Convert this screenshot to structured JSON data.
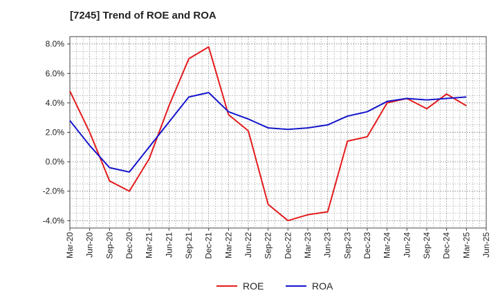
{
  "title": "[7245]  Trend of ROE and ROA",
  "chart_data": {
    "type": "line",
    "title": "[7245]  Trend of ROE and ROA",
    "xlabel": "",
    "ylabel": "",
    "categories": [
      "Mar-20",
      "Jun-20",
      "Sep-20",
      "Dec-20",
      "Mar-21",
      "Jun-21",
      "Sep-21",
      "Dec-21",
      "Mar-22",
      "Jun-22",
      "Sep-22",
      "Dec-22",
      "Mar-23",
      "Jun-23",
      "Sep-23",
      "Dec-23",
      "Mar-24",
      "Jun-24",
      "Sep-24",
      "Dec-24",
      "Mar-25",
      "Jun-25"
    ],
    "ylim": [
      -4.5,
      8.5
    ],
    "yticks": [
      8.0,
      6.0,
      4.0,
      2.0,
      0.0,
      -2.0,
      -4.0
    ],
    "ytick_labels": [
      "8.0%",
      "6.0%",
      "4.0%",
      "2.0%",
      "0.0%",
      "-2.0%",
      "-4.0%"
    ],
    "grid": true,
    "legend": "bottom-center",
    "series": [
      {
        "name": "ROE",
        "color": "#e41a1c",
        "values": [
          4.8,
          2.0,
          -1.3,
          -2.0,
          0.2,
          3.8,
          7.0,
          7.8,
          3.2,
          2.1,
          -2.9,
          -4.0,
          -3.6,
          -3.4,
          1.4,
          1.7,
          4.0,
          4.3,
          3.6,
          4.6,
          3.8,
          null
        ]
      },
      {
        "name": "ROA",
        "color": "#1515cc",
        "values": [
          2.8,
          1.1,
          -0.4,
          -0.7,
          1.0,
          2.7,
          4.4,
          4.7,
          3.4,
          2.9,
          2.3,
          2.2,
          2.3,
          2.5,
          3.1,
          3.4,
          4.1,
          4.3,
          4.2,
          4.3,
          4.4,
          null
        ]
      }
    ]
  }
}
